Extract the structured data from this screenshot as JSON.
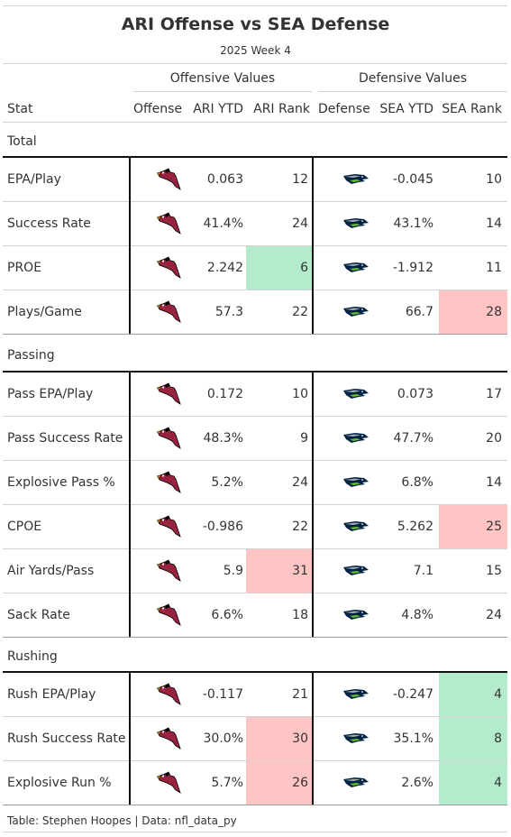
{
  "title": "ARI Offense vs SEA Defense",
  "subtitle": "2025 Week 4",
  "spanners": {
    "offense": "Offensive Values",
    "defense": "Defensive Values"
  },
  "columns": [
    "Stat",
    "Offense",
    "ARI YTD",
    "ARI Rank",
    "Defense",
    "SEA YTD",
    "SEA Rank"
  ],
  "colors": {
    "good": "#b3ebcc",
    "bad": "#ffc4c4",
    "ari_red": "#97233F",
    "sea_navy": "#002244",
    "sea_green": "#69BE28"
  },
  "groups": [
    {
      "label": "Total",
      "rows": [
        {
          "stat": "EPA/Play",
          "ari_ytd": "0.063",
          "ari_rank": "12",
          "ari_rank_color": "",
          "sea_ytd": "-0.045",
          "sea_rank": "10",
          "sea_rank_color": ""
        },
        {
          "stat": "Success Rate",
          "ari_ytd": "41.4%",
          "ari_rank": "24",
          "ari_rank_color": "",
          "sea_ytd": "43.1%",
          "sea_rank": "14",
          "sea_rank_color": ""
        },
        {
          "stat": "PROE",
          "ari_ytd": "2.242",
          "ari_rank": "6",
          "ari_rank_color": "good",
          "sea_ytd": "-1.912",
          "sea_rank": "11",
          "sea_rank_color": ""
        },
        {
          "stat": "Plays/Game",
          "ari_ytd": "57.3",
          "ari_rank": "22",
          "ari_rank_color": "",
          "sea_ytd": "66.7",
          "sea_rank": "28",
          "sea_rank_color": "bad"
        }
      ]
    },
    {
      "label": "Passing",
      "rows": [
        {
          "stat": "Pass EPA/Play",
          "ari_ytd": "0.172",
          "ari_rank": "10",
          "ari_rank_color": "",
          "sea_ytd": "0.073",
          "sea_rank": "17",
          "sea_rank_color": ""
        },
        {
          "stat": "Pass Success Rate",
          "ari_ytd": "48.3%",
          "ari_rank": "9",
          "ari_rank_color": "",
          "sea_ytd": "47.7%",
          "sea_rank": "20",
          "sea_rank_color": ""
        },
        {
          "stat": "Explosive Pass %",
          "ari_ytd": "5.2%",
          "ari_rank": "24",
          "ari_rank_color": "",
          "sea_ytd": "6.8%",
          "sea_rank": "14",
          "sea_rank_color": ""
        },
        {
          "stat": "CPOE",
          "ari_ytd": "-0.986",
          "ari_rank": "22",
          "ari_rank_color": "",
          "sea_ytd": "5.262",
          "sea_rank": "25",
          "sea_rank_color": "bad"
        },
        {
          "stat": "Air Yards/Pass",
          "ari_ytd": "5.9",
          "ari_rank": "31",
          "ari_rank_color": "bad",
          "sea_ytd": "7.1",
          "sea_rank": "15",
          "sea_rank_color": ""
        },
        {
          "stat": "Sack Rate",
          "ari_ytd": "6.6%",
          "ari_rank": "18",
          "ari_rank_color": "",
          "sea_ytd": "4.8%",
          "sea_rank": "24",
          "sea_rank_color": ""
        }
      ]
    },
    {
      "label": "Rushing",
      "rows": [
        {
          "stat": "Rush EPA/Play",
          "ari_ytd": "-0.117",
          "ari_rank": "21",
          "ari_rank_color": "",
          "sea_ytd": "-0.247",
          "sea_rank": "4",
          "sea_rank_color": "good"
        },
        {
          "stat": "Rush Success Rate",
          "ari_ytd": "30.0%",
          "ari_rank": "30",
          "ari_rank_color": "bad",
          "sea_ytd": "35.1%",
          "sea_rank": "8",
          "sea_rank_color": "good"
        },
        {
          "stat": "Explosive Run %",
          "ari_ytd": "5.7%",
          "ari_rank": "26",
          "ari_rank_color": "bad",
          "sea_ytd": "2.6%",
          "sea_rank": "4",
          "sea_rank_color": "good"
        }
      ]
    }
  ],
  "source": "Table: Stephen Hoopes | Data: nfl_data_py"
}
